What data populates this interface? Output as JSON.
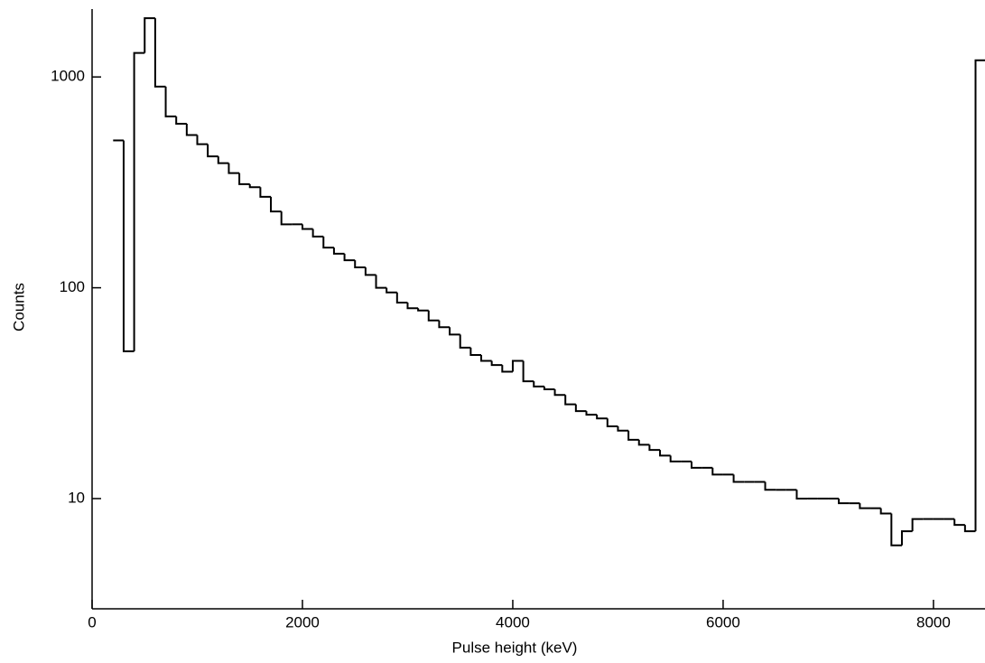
{
  "chart_data": {
    "type": "histogram",
    "xlabel": "Pulse height (keV)",
    "ylabel": "Counts",
    "bins": [
      200,
      300,
      400,
      500,
      600,
      700,
      800,
      900,
      1000,
      1100,
      1200,
      1300,
      1400,
      1500,
      1600,
      1700,
      1800,
      1900,
      2000,
      2100,
      2200,
      2300,
      2400,
      2500,
      2600,
      2700,
      2800,
      2900,
      3000,
      3100,
      3200,
      3300,
      3400,
      3500,
      3600,
      3700,
      3800,
      3900,
      4000,
      4100,
      4200,
      4300,
      4400,
      4500,
      4600,
      4700,
      4800,
      4900,
      5000,
      5100,
      5200,
      5300,
      5400,
      5500,
      5600,
      5700,
      5800,
      5900,
      6000,
      6100,
      6200,
      6300,
      6400,
      6500,
      6600,
      6700,
      6800,
      6900,
      7000,
      7100,
      7200,
      7300,
      7400,
      7500,
      7600,
      7700,
      7800,
      7900,
      8000,
      8100,
      8200,
      8300,
      8400,
      8500
    ],
    "values": [
      500,
      50,
      1300,
      1900,
      900,
      650,
      600,
      530,
      480,
      420,
      390,
      350,
      310,
      300,
      270,
      230,
      200,
      200,
      190,
      175,
      155,
      145,
      135,
      125,
      115,
      100,
      95,
      85,
      80,
      78,
      70,
      65,
      60,
      52,
      48,
      45,
      43,
      40,
      45,
      36,
      34,
      33,
      31,
      28,
      26,
      25,
      24,
      22,
      21,
      19,
      18,
      17,
      16,
      15,
      15,
      14,
      14,
      13,
      13,
      12,
      12,
      12,
      11,
      11,
      11,
      10,
      10,
      10,
      10,
      9.5,
      9.5,
      9,
      9,
      8.5,
      6,
      7,
      8,
      8,
      8,
      8,
      7.5,
      7,
      1200
    ],
    "color": "#000000",
    "xlim": [
      0,
      8490
    ],
    "ylim": [
      3,
      2100
    ],
    "log_y": true,
    "xticks": [
      0,
      2000,
      4000,
      6000,
      8000
    ],
    "yticks": [
      10,
      100,
      1000
    ]
  }
}
